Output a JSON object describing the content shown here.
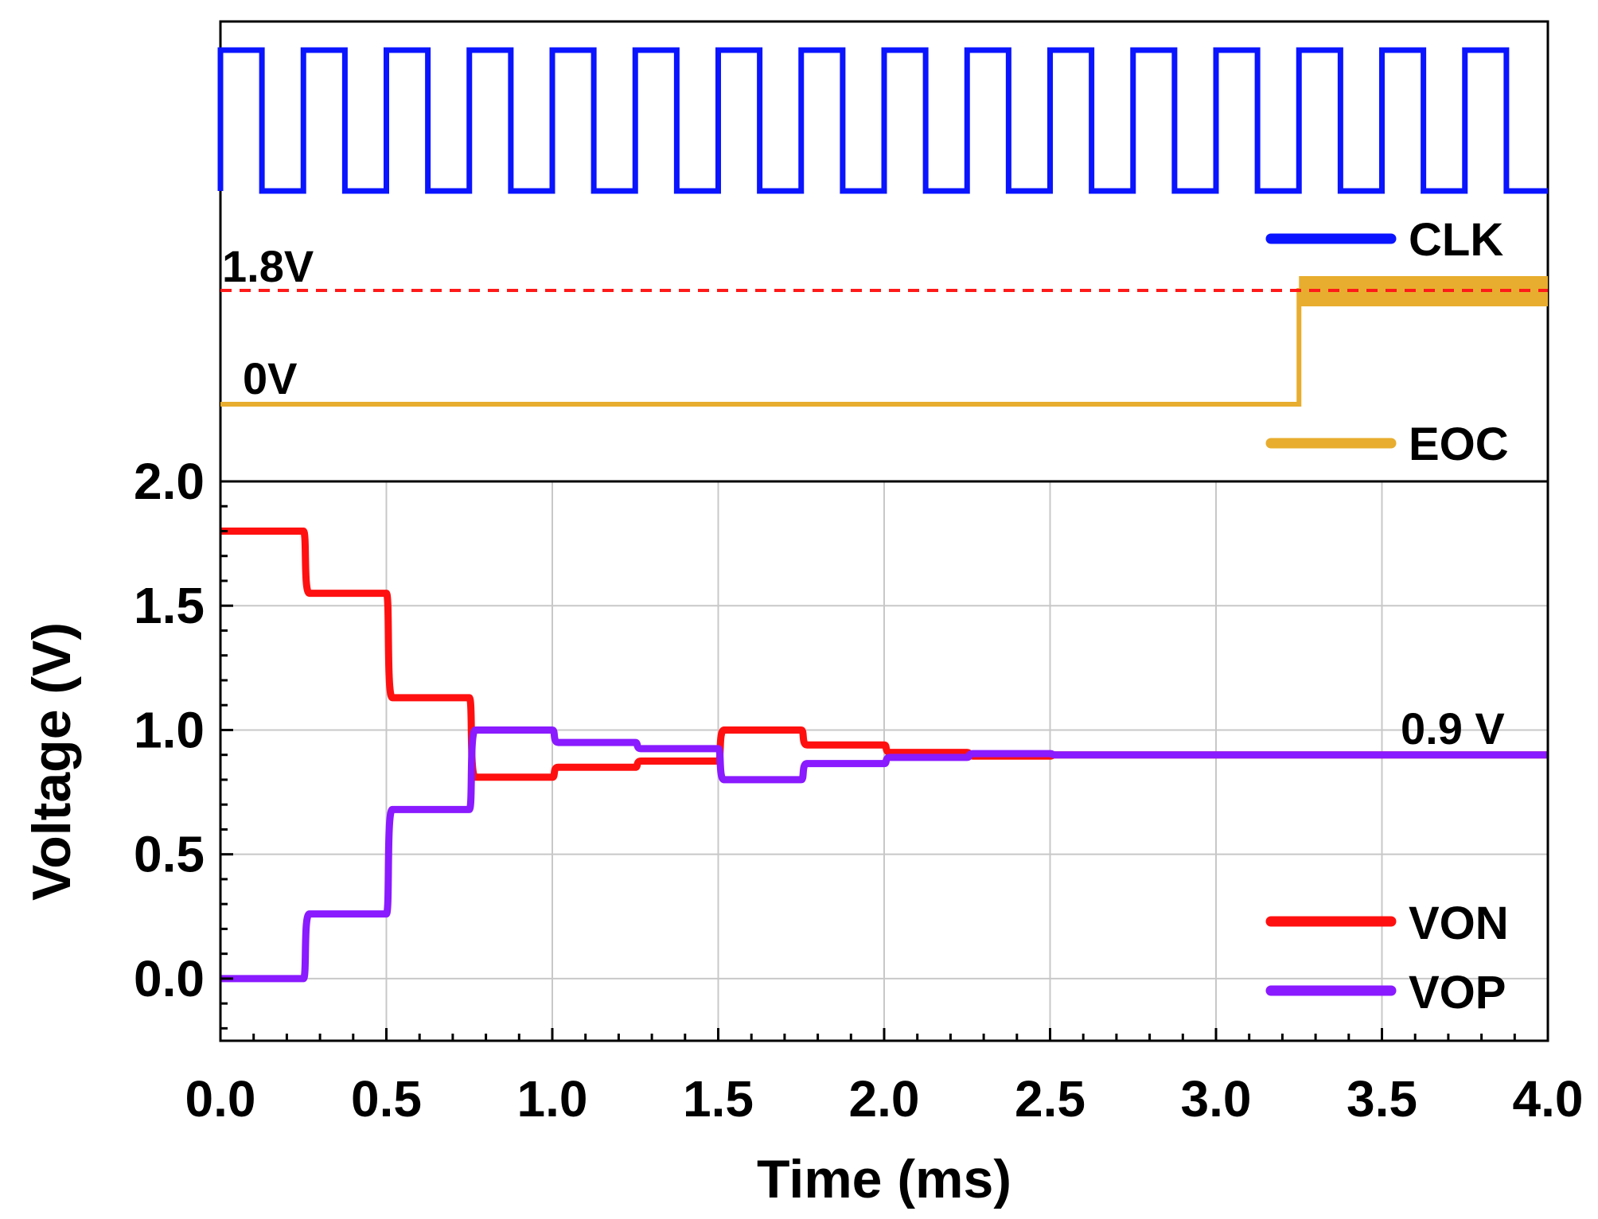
{
  "chart_data": [
    {
      "type": "line",
      "panel": "digital timing (top)",
      "x_range_ms": [
        0,
        4
      ],
      "series": [
        {
          "name": "CLK",
          "color": "#0a14ff",
          "kind": "square-wave",
          "period_ms": 0.25,
          "first_period_start_ms": 0.0,
          "duty_cycle": 0.5
        },
        {
          "name": "EOC",
          "color": "#e8ad2e",
          "kind": "step",
          "points": [
            [
              0,
              0
            ],
            [
              3.25,
              0
            ],
            [
              3.25,
              1.8
            ],
            [
              4.0,
              1.8
            ]
          ]
        }
      ],
      "annotations": {
        "high_level_label": "1.8V",
        "low_level_label": "0V"
      },
      "reference_line": {
        "color": "#ff1a1a",
        "style": "dashed",
        "level": "1.8V"
      },
      "legend": [
        {
          "label": "CLK",
          "color": "#0a14ff"
        },
        {
          "label": "EOC",
          "color": "#e8ad2e"
        }
      ]
    },
    {
      "type": "line",
      "panel": "analog output (bottom)",
      "xlabel": "Time (ms)",
      "ylabel": "Voltage (V)",
      "xlim": [
        0,
        4
      ],
      "ylim": [
        -0.25,
        2.0
      ],
      "x_ticks": [
        "0.0",
        "0.5",
        "1.0",
        "1.5",
        "2.0",
        "2.5",
        "3.0",
        "3.5",
        "4.0"
      ],
      "x_tick_values": [
        0,
        0.5,
        1.0,
        1.5,
        2.0,
        2.5,
        3.0,
        3.5,
        4.0
      ],
      "y_ticks": [
        "0.0",
        "0.5",
        "1.0",
        "1.5",
        "2.0"
      ],
      "y_tick_values": [
        0,
        0.5,
        1.0,
        1.5,
        2.0
      ],
      "grid": true,
      "series": [
        {
          "name": "VON",
          "color": "#ff1010",
          "steps": [
            [
              0,
              1.8
            ],
            [
              0.25,
              1.55
            ],
            [
              0.5,
              1.13
            ],
            [
              0.75,
              0.81
            ],
            [
              1.0,
              0.85
            ],
            [
              1.25,
              0.875
            ],
            [
              1.5,
              1.0
            ],
            [
              1.75,
              0.94
            ],
            [
              2.0,
              0.91
            ],
            [
              2.25,
              0.895
            ],
            [
              2.5,
              0.9
            ],
            [
              3.0,
              0.9
            ],
            [
              4.0,
              0.9
            ]
          ]
        },
        {
          "name": "VOP",
          "color": "#8a1aff",
          "steps": [
            [
              0,
              0.0
            ],
            [
              0.25,
              0.26
            ],
            [
              0.5,
              0.68
            ],
            [
              0.75,
              1.0
            ],
            [
              1.0,
              0.95
            ],
            [
              1.25,
              0.925
            ],
            [
              1.5,
              0.8
            ],
            [
              1.75,
              0.865
            ],
            [
              2.0,
              0.89
            ],
            [
              2.25,
              0.905
            ],
            [
              2.5,
              0.9
            ],
            [
              3.0,
              0.9
            ],
            [
              4.0,
              0.9
            ]
          ]
        }
      ],
      "annotations": {
        "final_value_label": "0.9 V"
      },
      "legend": [
        {
          "label": "VON",
          "color": "#ff1010"
        },
        {
          "label": "VOP",
          "color": "#8a1aff"
        }
      ]
    }
  ]
}
